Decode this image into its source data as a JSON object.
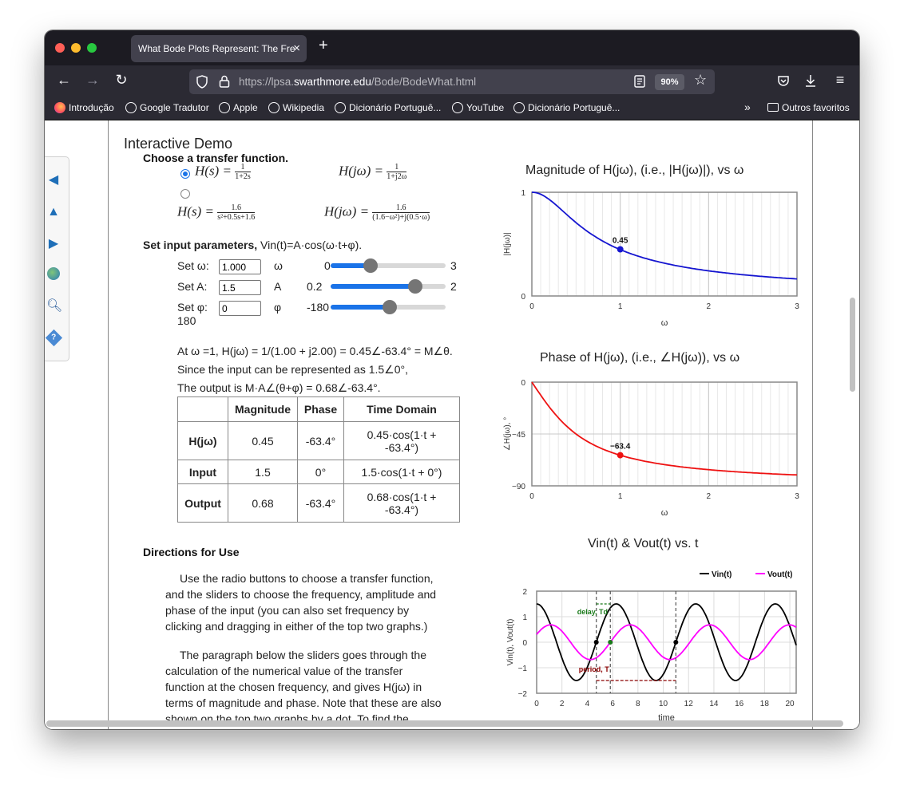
{
  "browser": {
    "tab_title": "What Bode Plots Represent: The Fre",
    "url_prefix": "https://lpsa.",
    "url_domain": "swarthmore.edu",
    "url_path": "/Bode/BodeWhat.html",
    "zoom": "90%",
    "bookmarks": [
      "Introdução",
      "Google Tradutor",
      "Apple",
      "Wikipedia",
      "Dicionário Portuguê...",
      "YouTube",
      "Dicionário Portuguê..."
    ],
    "other_bookmarks": "Outros favoritos"
  },
  "page": {
    "heading": "Interactive Demo",
    "choose_tf": "Choose a transfer function.",
    "set_params": "Set input parameters,",
    "set_params_eq": "Vin(t)=A·cos(ω·t+φ).",
    "params": [
      {
        "label": "Set ω:",
        "value": "1.000",
        "symbol": "ω",
        "min": "0",
        "max": "3",
        "fraction": 0.333
      },
      {
        "label": "Set A:",
        "value": "1.5",
        "symbol": "A",
        "min": "0.2",
        "max": "2",
        "fraction": 0.722
      },
      {
        "label": "Set φ:",
        "value": "0",
        "symbol": "φ",
        "min": "-180",
        "max": "180",
        "fraction": 0.5
      }
    ],
    "calc_line1": "At ω =1, H(jω) = 1/(1.00 + j2.00) = 0.45∠-63.4° = M∠θ.",
    "calc_line2": "Since the input can be represented as 1.5∠0°,",
    "calc_line3": "The output is M·A∠(θ+φ) = 0.68∠-63.4°.",
    "table": {
      "headers": [
        "",
        "Magnitude",
        "Phase",
        "Time Domain"
      ],
      "rows": [
        {
          "name": "H(jω)",
          "mag": "0.45",
          "phase": "-63.4°",
          "td": "0.45·cos(1·t + -63.4°)"
        },
        {
          "name": "Input",
          "mag": "1.5",
          "phase": "0°",
          "td": "1.5·cos(1·t + 0°)"
        },
        {
          "name": "Output",
          "mag": "0.68",
          "phase": "-63.4°",
          "td": "0.68·cos(1·t + -63.4°)"
        }
      ]
    },
    "directions_title": "Directions for Use",
    "para1": "Use the radio buttons to choose a transfer function, and the sliders to choose the frequency, amplitude and phase of the input (you can also set frequency by clicking and dragging in either of the top two graphs.)",
    "para2": "The paragraph below the sliders goes through the calculation of the numerical value of the transfer function at the chosen frequency, and gives H(jω) in terms of magnitude and phase. Note that these are also shown on the top two graphs by a dot. To find the"
  },
  "chart_data": [
    {
      "type": "line",
      "title": "Magnitude of H(jω), (i.e., |H(jω)|), vs ω",
      "xlabel": "ω",
      "ylabel": "|H(jω)|",
      "xlim": [
        0,
        3
      ],
      "ylim": [
        0,
        1
      ],
      "xticks": [
        "0",
        "1",
        "2",
        "3"
      ],
      "yticks": [
        "0",
        "1"
      ],
      "series": [
        {
          "x": [
            0,
            0.25,
            0.5,
            0.75,
            1,
            1.5,
            2,
            2.5,
            3
          ],
          "values": [
            1,
            0.89,
            0.71,
            0.55,
            0.45,
            0.32,
            0.24,
            0.2,
            0.16
          ]
        }
      ],
      "marker": {
        "x": 1,
        "y": 0.45,
        "label": "0.45"
      }
    },
    {
      "type": "line",
      "title": "Phase of H(jω), (i.e., ∠H(jω)), vs ω",
      "xlabel": "ω",
      "ylabel": "∠H(jω), °",
      "xlim": [
        0,
        3
      ],
      "ylim": [
        -90,
        0
      ],
      "xticks": [
        "0",
        "1",
        "2",
        "3"
      ],
      "yticks": [
        "0",
        "−45",
        "−90"
      ],
      "series": [
        {
          "x": [
            0,
            0.25,
            0.5,
            0.75,
            1,
            1.5,
            2,
            2.5,
            3
          ],
          "values": [
            0,
            -26.6,
            -45,
            -56.3,
            -63.4,
            -71.6,
            -76,
            -78.7,
            -80.5
          ]
        }
      ],
      "marker": {
        "x": 1,
        "y": -63.4,
        "label": "−63.4"
      }
    },
    {
      "type": "line",
      "title": "Vin(t) & Vout(t) vs. t",
      "xlabel": "time",
      "ylabel": "Vin(t), Vout(t)",
      "xlim": [
        0,
        20.5
      ],
      "ylim": [
        -2,
        2
      ],
      "xticks": [
        "0",
        "2",
        "4",
        "6",
        "8",
        "10",
        "12",
        "14",
        "16",
        "18",
        "20"
      ],
      "yticks": [
        "2",
        "1",
        "0",
        "−1",
        "−2"
      ],
      "series": [
        {
          "name": "Vin(t)",
          "amplitude": 1.5,
          "omega": 1,
          "phase_deg": 0,
          "color": "#000000"
        },
        {
          "name": "Vout(t)",
          "amplitude": 0.68,
          "omega": 1,
          "phase_deg": -63.4,
          "color": "#ff00ff"
        }
      ],
      "annotations": [
        "delay, Td",
        "period, T"
      ]
    }
  ]
}
